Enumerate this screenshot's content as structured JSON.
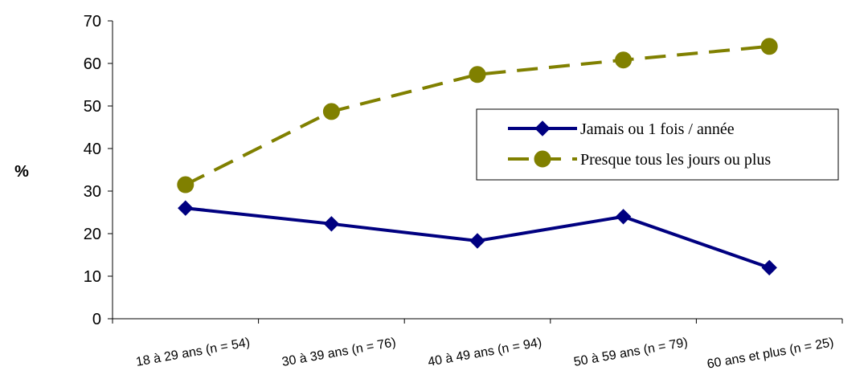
{
  "chart_data": {
    "type": "line",
    "title": "",
    "xlabel": "",
    "ylabel": "%",
    "ylim": [
      0,
      70
    ],
    "yticks": [
      0,
      10,
      20,
      30,
      40,
      50,
      60,
      70
    ],
    "grid": false,
    "legend_position": "right",
    "categories": [
      "18 à 29 ans (n = 54)",
      "30 à 39 ans (n = 76)",
      "40 à 49 ans (n = 94)",
      "50 à 59 ans (n = 79)",
      "60 ans et plus (n = 25)"
    ],
    "series": [
      {
        "name": "Jamais ou 1 fois / année",
        "values": [
          26,
          22.3,
          18.3,
          24,
          12
        ],
        "color": "#000080",
        "marker": "diamond",
        "line_style": "solid"
      },
      {
        "name": "Presque tous les jours ou plus",
        "values": [
          31.5,
          48.7,
          57.4,
          60.8,
          64
        ],
        "color": "#808000",
        "marker": "circle",
        "line_style": "dashed"
      }
    ]
  }
}
